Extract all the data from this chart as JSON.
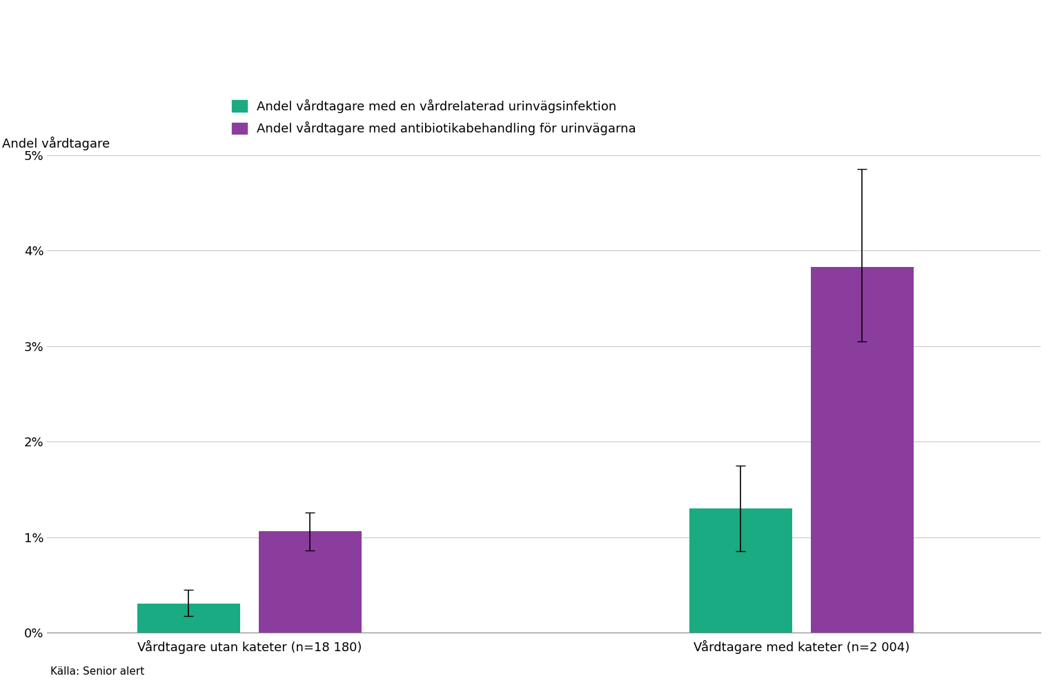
{
  "categories": [
    "Vårdtagare utan kateter (n=18 180)",
    "Vårdtagare med kateter (n=2 004)"
  ],
  "green_values": [
    0.003,
    0.013
  ],
  "purple_values": [
    0.0106,
    0.0383
  ],
  "green_err_lower": [
    0.0013,
    0.0045
  ],
  "green_err_upper": [
    0.0015,
    0.0045
  ],
  "purple_err_lower": [
    0.002,
    0.0078
  ],
  "purple_err_upper": [
    0.002,
    0.0102
  ],
  "green_color": "#1aab82",
  "purple_color": "#8b3d9e",
  "ylabel": "Andel vårdtagare",
  "ylim": [
    0,
    0.05
  ],
  "yticks": [
    0,
    0.01,
    0.02,
    0.03,
    0.04,
    0.05
  ],
  "ytick_labels": [
    "0%",
    "1%",
    "2%",
    "3%",
    "4%",
    "5%"
  ],
  "legend_green": "Andel vårdtagare med en vårdrelaterad urinvägsinfektion",
  "legend_purple": "Andel vårdtagare med antibiotikabehandling för urinvägarna",
  "source_text": "Källa: Senior alert",
  "bar_width": 0.28,
  "group_positions": [
    1.0,
    2.5
  ],
  "background_color": "#ffffff"
}
